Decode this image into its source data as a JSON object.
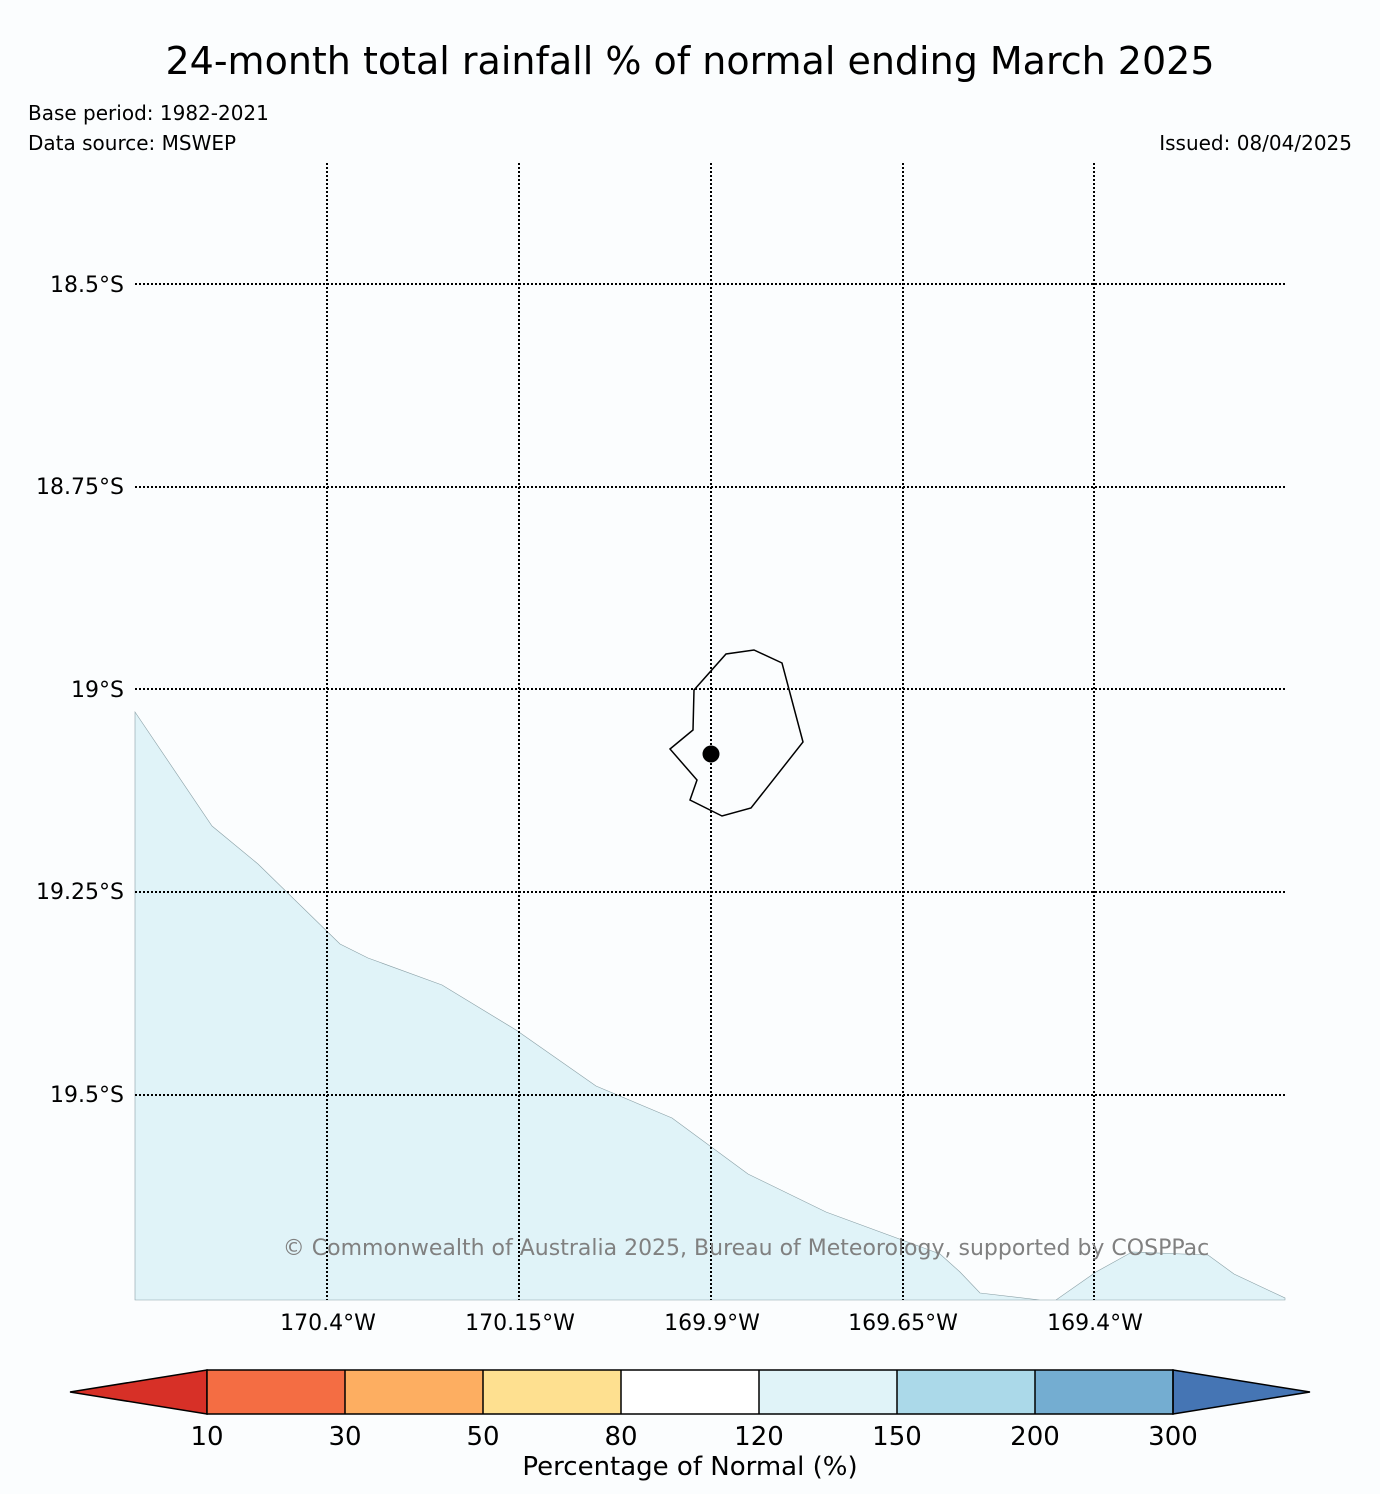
{
  "title": "24-month total rainfall % of normal ending March 2025",
  "base_period": "Base period: 1982-2021",
  "data_source": "Data source: MSWEP",
  "issued": "Issued: 08/04/2025",
  "copyright": "© Commonwealth of Australia 2025, Bureau of Meteorology, supported by COSPPac",
  "map": {
    "lat_labels": [
      "18.5°S",
      "18.75°S",
      "19°S",
      "19.25°S",
      "19.5°S"
    ],
    "lon_labels": [
      "170.4°W",
      "170.15°W",
      "169.9°W",
      "169.65°W",
      "169.4°W"
    ],
    "gridlines": "dotted",
    "island_marker": "station point",
    "shaded_area_color": "#e0f3f8"
  },
  "colorbar": {
    "label": "Percentage of Normal (%)",
    "ticks": [
      "10",
      "30",
      "50",
      "80",
      "120",
      "150",
      "200",
      "300"
    ],
    "colors": [
      "#d73027",
      "#f46d43",
      "#fdae61",
      "#fee090",
      "#ffffff",
      "#e0f3f8",
      "#abd9e9",
      "#74add1",
      "#4575b4"
    ]
  }
}
